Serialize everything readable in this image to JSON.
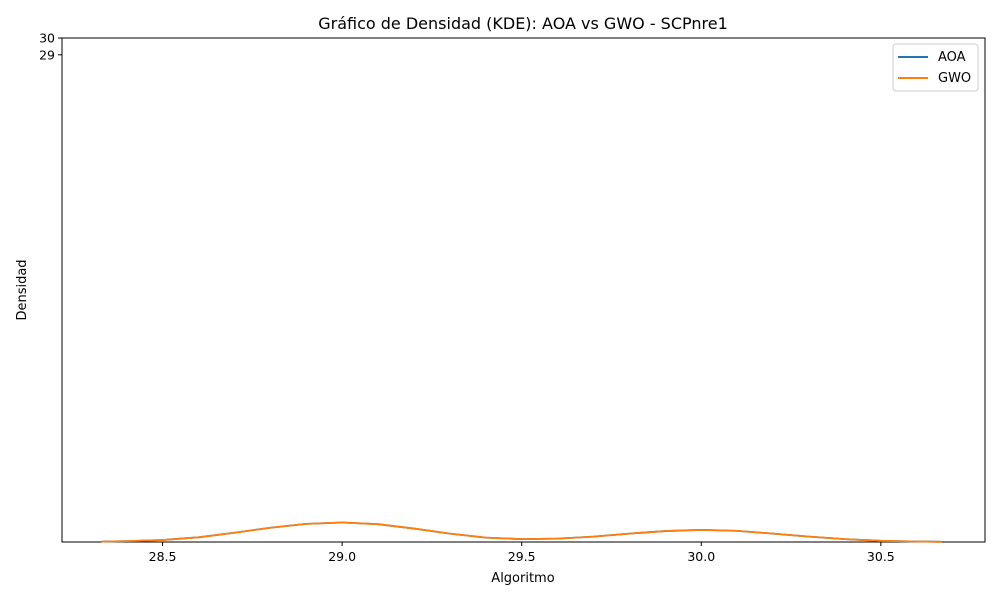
{
  "chart_data": {
    "type": "line",
    "title": "Gráfico de Densidad (KDE): AOA vs GWO - SCPnre1",
    "xlabel": "Algoritmo",
    "ylabel": "Densidad",
    "xlim": [
      28.22,
      30.79
    ],
    "ylim": [
      0,
      30
    ],
    "x_ticks": [
      28.5,
      29.0,
      29.5,
      30.0,
      30.5
    ],
    "x_tick_labels": [
      "28.5",
      "29.0",
      "29.5",
      "30.0",
      "30.5"
    ],
    "y_ticks": [
      29,
      30
    ],
    "y_tick_labels": [
      "29",
      "30"
    ],
    "grid": false,
    "legend_position": "top-right",
    "series": [
      {
        "name": "AOA",
        "color": "#1f77b4",
        "x": [
          28.33,
          28.4,
          28.5,
          28.6,
          28.7,
          28.8,
          28.9,
          29.0,
          29.1,
          29.2,
          29.3,
          29.4,
          29.5,
          29.6,
          29.7,
          29.8,
          29.9,
          30.0,
          30.1,
          30.2,
          30.3,
          30.4,
          30.5,
          30.6,
          30.67
        ],
        "values": [
          0.02,
          0.05,
          0.12,
          0.28,
          0.55,
          0.85,
          1.08,
          1.16,
          1.06,
          0.8,
          0.5,
          0.26,
          0.17,
          0.2,
          0.32,
          0.5,
          0.65,
          0.72,
          0.66,
          0.5,
          0.32,
          0.17,
          0.07,
          0.03,
          0.01
        ]
      },
      {
        "name": "GWO",
        "color": "#ff7f0e",
        "x": [
          28.33,
          28.4,
          28.5,
          28.6,
          28.7,
          28.8,
          28.9,
          29.0,
          29.1,
          29.2,
          29.3,
          29.4,
          29.5,
          29.6,
          29.7,
          29.8,
          29.9,
          30.0,
          30.1,
          30.2,
          30.3,
          30.4,
          30.5,
          30.6,
          30.67
        ],
        "values": [
          0.02,
          0.05,
          0.12,
          0.28,
          0.55,
          0.85,
          1.08,
          1.16,
          1.06,
          0.8,
          0.5,
          0.26,
          0.17,
          0.2,
          0.32,
          0.5,
          0.65,
          0.72,
          0.66,
          0.5,
          0.32,
          0.17,
          0.07,
          0.03,
          0.01
        ]
      }
    ]
  }
}
